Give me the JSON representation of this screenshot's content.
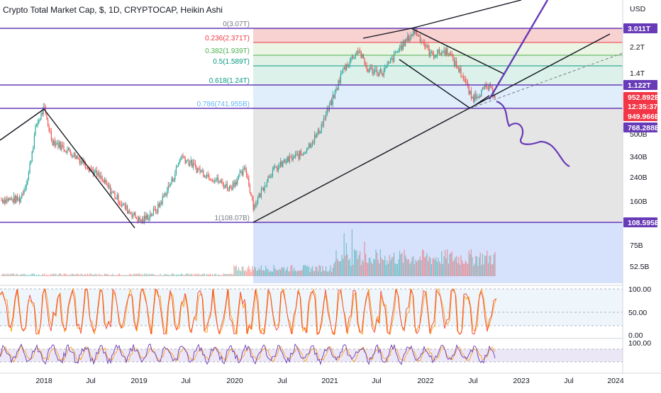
{
  "header": {
    "title": "Crypto Total Market Cap, $, 1D, CRYPTOCAP, Heikin Ashi"
  },
  "price_axis": {
    "unit_label": "USD",
    "ticks": [
      "2.2T",
      "1.4T",
      "500B",
      "340B",
      "240B",
      "160B",
      "75B",
      "52.5B"
    ],
    "badges": [
      {
        "text": "3.011T",
        "color": "#673ab7"
      },
      {
        "text": "1.122T",
        "color": "#673ab7"
      },
      {
        "text": "952.892B",
        "color": "#f23645"
      },
      {
        "text": "12:35:37",
        "color": "#f23645"
      },
      {
        "text": "949.966B",
        "color": "#f23645"
      },
      {
        "text": "768.288B",
        "color": "#673ab7"
      },
      {
        "text": "108.595B",
        "color": "#673ab7"
      }
    ]
  },
  "time_axis": {
    "labels": [
      "2018",
      "Jul",
      "2019",
      "Jul",
      "2020",
      "Jul",
      "2021",
      "Jul",
      "2022",
      "Jul",
      "2023",
      "Jul",
      "2024"
    ]
  },
  "fib_levels": [
    {
      "label": "0(3.07T)",
      "color": "#787b86"
    },
    {
      "label": "0.236(2.371T)",
      "color": "#f23645"
    },
    {
      "label": "0.382(1.939T)",
      "color": "#4caf50"
    },
    {
      "label": "0.5(1.589T)",
      "color": "#089981"
    },
    {
      "label": "0.618(1.24T)",
      "color": "#089981"
    },
    {
      "label": "0.786(741.955B)",
      "color": "#64b5f6"
    },
    {
      "label": "1(108.07B)",
      "color": "#787b86"
    }
  ],
  "oscillators": [
    {
      "name": "stoch",
      "ticks": [
        "100.00",
        "50.00",
        "0.00"
      ],
      "colors": [
        "#f44336",
        "#ff9800"
      ]
    },
    {
      "name": "rsi",
      "ticks": [
        "100.00"
      ],
      "colors": [
        "#673ab7",
        "#ff9800"
      ]
    }
  ],
  "colors": {
    "bull": "#26a69a",
    "bear": "#ef5350",
    "trend_line": "#131722",
    "projection": "#673ab7",
    "level_line": "#673ab7"
  },
  "chart_data": {
    "type": "candlestick",
    "title": "Crypto Total Market Cap, $, 1D, CRYPTOCAP, Heikin Ashi",
    "y_scale": "log",
    "y_unit": "USD",
    "x": [
      "2017-10",
      "2017-11",
      "2017-12",
      "2018-01",
      "2018-02",
      "2018-04",
      "2018-06",
      "2018-08",
      "2018-11",
      "2019-01",
      "2019-03",
      "2019-05",
      "2019-06",
      "2019-08",
      "2019-10",
      "2019-12",
      "2020-02",
      "2020-03",
      "2020-05",
      "2020-07",
      "2020-09",
      "2020-11",
      "2021-01",
      "2021-02",
      "2021-04",
      "2021-05",
      "2021-07",
      "2021-09",
      "2021-11",
      "2022-01",
      "2022-03",
      "2022-05",
      "2022-06",
      "2022-08",
      "2022-09"
    ],
    "close": [
      160,
      230,
      560,
      760,
      440,
      370,
      300,
      230,
      140,
      110,
      135,
      230,
      340,
      270,
      230,
      195,
      270,
      140,
      250,
      310,
      350,
      500,
      960,
      1450,
      2100,
      1500,
      1400,
      2100,
      2900,
      1900,
      2050,
      1300,
      900,
      1100,
      950
    ],
    "close_unit": "B USD",
    "levels": [
      {
        "value": 3011,
        "label": "3.011T"
      },
      {
        "value": 1122,
        "label": "1.122T"
      },
      {
        "value": 768.288,
        "label": "768.288B"
      },
      {
        "value": 108.595,
        "label": "108.595B"
      }
    ],
    "fibonacci": [
      {
        "ratio": 0,
        "value": 3070
      },
      {
        "ratio": 0.236,
        "value": 2371
      },
      {
        "ratio": 0.382,
        "value": 1939
      },
      {
        "ratio": 0.5,
        "value": 1589
      },
      {
        "ratio": 0.618,
        "value": 1240
      },
      {
        "ratio": 0.786,
        "value": 741.955
      },
      {
        "ratio": 1,
        "value": 108.07
      }
    ],
    "last_price": "949.966B"
  }
}
